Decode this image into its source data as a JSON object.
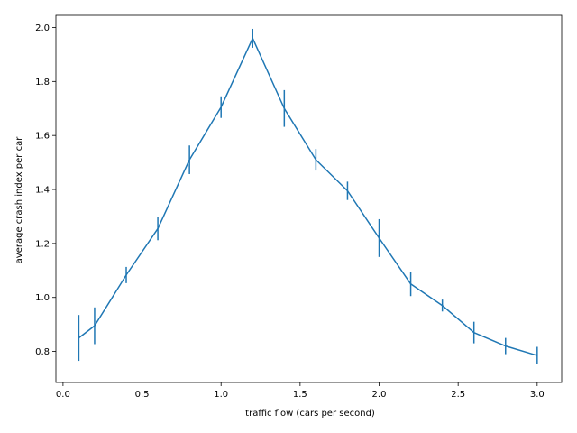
{
  "chart_data": {
    "type": "line",
    "title": "",
    "xlabel": "traffic flow (cars per second)",
    "ylabel": "average crash index per car",
    "xlim": [
      -0.045,
      3.155
    ],
    "ylim": [
      0.685,
      2.045
    ],
    "x_ticks": [
      0.0,
      0.5,
      1.0,
      1.5,
      2.0,
      2.5,
      3.0
    ],
    "x_tick_labels": [
      "0.0",
      "0.5",
      "1.0",
      "1.5",
      "2.0",
      "2.5",
      "3.0"
    ],
    "y_ticks": [
      0.8,
      1.0,
      1.2,
      1.4,
      1.6,
      1.8,
      2.0
    ],
    "y_tick_labels": [
      "0.8",
      "1.0",
      "1.2",
      "1.4",
      "1.6",
      "1.8",
      "2.0"
    ],
    "grid": false,
    "series": [
      {
        "color": "#1f77b4",
        "x": [
          0.1,
          0.2,
          0.4,
          0.6,
          0.8,
          1.0,
          1.2,
          1.4,
          1.6,
          1.8,
          2.0,
          2.2,
          2.4,
          2.6,
          2.8,
          3.0
        ],
        "y": [
          0.85,
          0.895,
          1.083,
          1.255,
          1.51,
          1.705,
          1.96,
          1.7,
          1.51,
          1.395,
          1.22,
          1.05,
          0.97,
          0.87,
          0.82,
          0.785
        ],
        "yerr": [
          0.085,
          0.068,
          0.03,
          0.043,
          0.053,
          0.04,
          0.035,
          0.068,
          0.04,
          0.034,
          0.07,
          0.045,
          0.022,
          0.04,
          0.03,
          0.032
        ]
      }
    ]
  }
}
